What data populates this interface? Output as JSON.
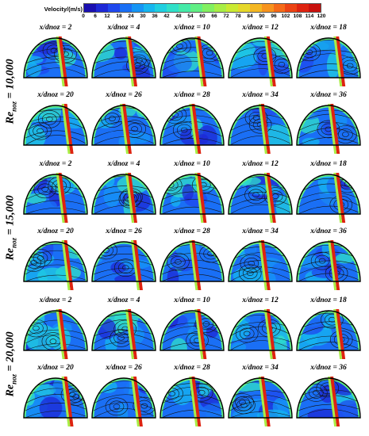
{
  "legend": {
    "title": "Velocity/(m/s)",
    "ticks": [
      "0",
      "6",
      "12",
      "18",
      "24",
      "30",
      "36",
      "42",
      "48",
      "54",
      "60",
      "66",
      "72",
      "78",
      "84",
      "90",
      "96",
      "102",
      "108",
      "114",
      "120"
    ],
    "colors": [
      "#1a0fb0",
      "#1d28d6",
      "#1f48ee",
      "#1a6ff5",
      "#1595f5",
      "#16b6ef",
      "#20cfe0",
      "#30e0c8",
      "#45eaa8",
      "#60ef84",
      "#82f060",
      "#a8ee45",
      "#caea32",
      "#e6d82a",
      "#f4b722",
      "#f7931d",
      "#f56a18",
      "#ec4313",
      "#de2310",
      "#c8110e"
    ]
  },
  "groups": [
    {
      "label_main": "Re",
      "label_sub": "noz",
      "label_value": " = 10,000",
      "rows": [
        [
          "x/dnoz = 2",
          "x/dnoz = 4",
          "x/dnoz = 10",
          "x/dnoz = 12",
          "x/dnoz = 18"
        ],
        [
          "x/dnoz = 20",
          "x/dnoz = 26",
          "x/dnoz = 28",
          "x/dnoz = 34",
          "x/dnoz = 36"
        ]
      ]
    },
    {
      "label_main": "Re",
      "label_sub": "noz",
      "label_value": " = 15,000",
      "rows": [
        [
          "x/dnoz = 2",
          "x/dnoz = 4",
          "x/dnoz = 10",
          "x/dnoz = 12",
          "x/dnoz = 18"
        ],
        [
          "x/dnoz = 20",
          "x/dnoz = 26",
          "x/dnoz = 28",
          "x/dnoz = 34",
          "x/dnoz = 36"
        ]
      ]
    },
    {
      "label_main": "Re",
      "label_sub": "noz",
      "label_value": " = 20,000",
      "rows": [
        [
          "x/dnoz = 2",
          "x/dnoz = 4",
          "x/dnoz = 10",
          "x/dnoz = 12",
          "x/dnoz = 18"
        ],
        [
          "x/dnoz = 20",
          "x/dnoz = 26",
          "x/dnoz = 28",
          "x/dnoz = 34",
          "x/dnoz = 36"
        ]
      ]
    }
  ]
}
